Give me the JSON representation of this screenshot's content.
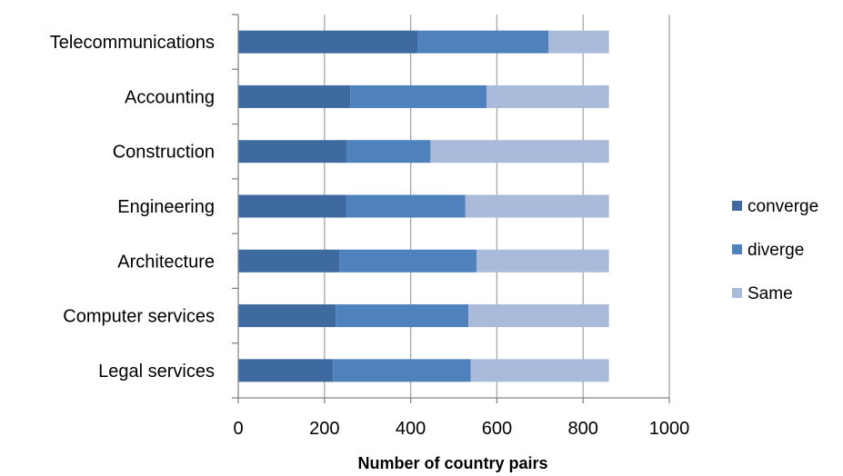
{
  "chart_data": {
    "type": "bar",
    "orientation": "horizontal",
    "stacked": true,
    "categories": [
      "Telecommunications",
      "Accounting",
      "Construction",
      "Engineering",
      "Architecture",
      "Computer services",
      "Legal services"
    ],
    "series": [
      {
        "name": "converge",
        "color": "#3e6aa0",
        "values": [
          417,
          260,
          251,
          250,
          235,
          226,
          220
        ]
      },
      {
        "name": "diverge",
        "color": "#4f81bd",
        "values": [
          303,
          316,
          195,
          277,
          318,
          308,
          319
        ]
      },
      {
        "name": "Same",
        "color": "#a9badb",
        "values": [
          140,
          284,
          414,
          333,
          307,
          326,
          321
        ]
      }
    ],
    "xlabel": "Number of country pairs",
    "xlim": [
      0,
      1000
    ],
    "xticks": [
      "0",
      "200",
      "400",
      "600",
      "800",
      "1000"
    ],
    "grid": "vertical",
    "legend": "right"
  }
}
